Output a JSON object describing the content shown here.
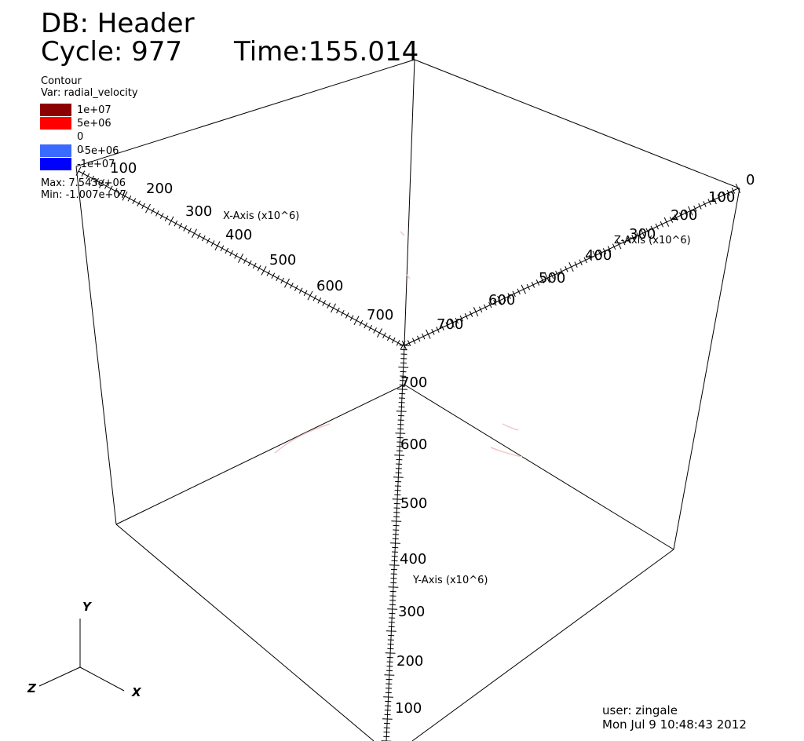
{
  "header": {
    "db_title": "DB: Header",
    "cycle_label": "Cycle: 977",
    "time_label": "Time:155.014"
  },
  "legend": {
    "plot_type": "Contour",
    "var_label": "Var: radial_velocity",
    "levels": [
      {
        "label": "1e+07",
        "color": "#8b0000"
      },
      {
        "label": "5e+06",
        "color": "#ff0000"
      },
      {
        "label": "0",
        "color": "#ffffff"
      },
      {
        "label": "0",
        "color": "#3a6bff"
      },
      {
        "label": "-5e+06",
        "color": "#3a6bff"
      },
      {
        "label": "-1e+07",
        "color": "#0000ff"
      }
    ],
    "max_label": "Max:  7.543e+06",
    "min_label": "Min: -1.007e+07"
  },
  "axes": {
    "x_title": "X-Axis (x10^6)",
    "y_title": "Y-Axis (x10^6)",
    "z_title": "Z-Axis (x10^6)",
    "x_ticks": [
      "100",
      "200",
      "300",
      "400",
      "500",
      "600",
      "700"
    ],
    "y_ticks": [
      "100",
      "200",
      "300",
      "400",
      "500",
      "600",
      "700"
    ],
    "z_ticks": [
      "0",
      "100",
      "200",
      "300",
      "400",
      "500",
      "600",
      "700"
    ]
  },
  "triad": {
    "x": "X",
    "y": "Y",
    "z": "Z"
  },
  "footer": {
    "user": "user: zingale",
    "date": "Mon Jul  9 10:48:43 2012"
  }
}
